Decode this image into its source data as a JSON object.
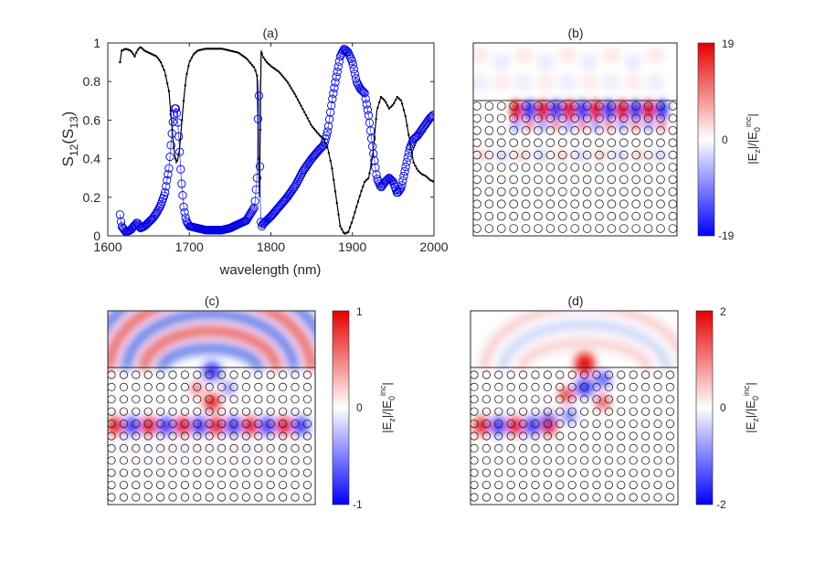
{
  "chart_data": [
    {
      "type": "line",
      "panel_label": "(a)",
      "title": "(a)",
      "xlabel": "wavelength (nm)",
      "ylabel": {
        "main": "S",
        "sub1": "12",
        "paren_open": "(S",
        "sub2": "13",
        "paren_close": ")"
      },
      "xlim": [
        1600,
        2000
      ],
      "ylim": [
        0,
        1
      ],
      "xticks": [
        "1600",
        "1700",
        "1800",
        "1900",
        "2000"
      ],
      "yticks": [
        "0",
        "0.2",
        "0.4",
        "0.6",
        "0.8",
        "1"
      ],
      "series": [
        {
          "name": "S12",
          "style": "black dots",
          "color": "#000000",
          "points": [
            [
              1615,
              0.9
            ],
            [
              1617,
              0.96
            ],
            [
              1622,
              0.97
            ],
            [
              1628,
              0.96
            ],
            [
              1630,
              0.95
            ],
            [
              1633,
              0.93
            ],
            [
              1636,
              0.96
            ],
            [
              1640,
              0.98
            ],
            [
              1645,
              0.96
            ],
            [
              1650,
              0.95
            ],
            [
              1655,
              0.94
            ],
            [
              1660,
              0.93
            ],
            [
              1665,
              0.9
            ],
            [
              1670,
              0.85
            ],
            [
              1675,
              0.75
            ],
            [
              1678,
              0.6
            ],
            [
              1680,
              0.5
            ],
            [
              1682,
              0.42
            ],
            [
              1684,
              0.38
            ],
            [
              1686,
              0.4
            ],
            [
              1688,
              0.45
            ],
            [
              1690,
              0.55
            ],
            [
              1693,
              0.7
            ],
            [
              1696,
              0.82
            ],
            [
              1700,
              0.9
            ],
            [
              1705,
              0.94
            ],
            [
              1710,
              0.96
            ],
            [
              1720,
              0.97
            ],
            [
              1730,
              0.97
            ],
            [
              1740,
              0.97
            ],
            [
              1750,
              0.96
            ],
            [
              1760,
              0.95
            ],
            [
              1770,
              0.92
            ],
            [
              1780,
              0.87
            ],
            [
              1783,
              0.83
            ],
            [
              1785,
              0.4
            ],
            [
              1786,
              0.2
            ],
            [
              1787,
              0.55
            ],
            [
              1788,
              0.96
            ],
            [
              1790,
              0.93
            ],
            [
              1795,
              0.9
            ],
            [
              1800,
              0.88
            ],
            [
              1810,
              0.85
            ],
            [
              1820,
              0.8
            ],
            [
              1830,
              0.73
            ],
            [
              1840,
              0.65
            ],
            [
              1850,
              0.57
            ],
            [
              1860,
              0.52
            ],
            [
              1865,
              0.5
            ],
            [
              1870,
              0.45
            ],
            [
              1875,
              0.35
            ],
            [
              1880,
              0.2
            ],
            [
              1885,
              0.05
            ],
            [
              1890,
              0.01
            ],
            [
              1895,
              0.02
            ],
            [
              1900,
              0.08
            ],
            [
              1905,
              0.15
            ],
            [
              1910,
              0.22
            ],
            [
              1915,
              0.28
            ],
            [
              1920,
              0.3
            ],
            [
              1925,
              0.42
            ],
            [
              1930,
              0.65
            ],
            [
              1935,
              0.72
            ],
            [
              1940,
              0.7
            ],
            [
              1945,
              0.66
            ],
            [
              1950,
              0.68
            ],
            [
              1955,
              0.72
            ],
            [
              1960,
              0.7
            ],
            [
              1965,
              0.62
            ],
            [
              1970,
              0.5
            ],
            [
              1975,
              0.38
            ],
            [
              1980,
              0.34
            ],
            [
              1985,
              0.32
            ],
            [
              1990,
              0.31
            ],
            [
              1995,
              0.29
            ],
            [
              2000,
              0.28
            ]
          ]
        },
        {
          "name": "S13",
          "style": "blue open circles",
          "color": "#0000e0",
          "points": [
            [
              1615,
              0.11
            ],
            [
              1617,
              0.05
            ],
            [
              1622,
              0.02
            ],
            [
              1628,
              0.03
            ],
            [
              1632,
              0.05
            ],
            [
              1636,
              0.07
            ],
            [
              1640,
              0.04
            ],
            [
              1645,
              0.05
            ],
            [
              1650,
              0.07
            ],
            [
              1655,
              0.09
            ],
            [
              1660,
              0.12
            ],
            [
              1665,
              0.16
            ],
            [
              1670,
              0.22
            ],
            [
              1675,
              0.35
            ],
            [
              1678,
              0.5
            ],
            [
              1680,
              0.6
            ],
            [
              1682,
              0.66
            ],
            [
              1684,
              0.66
            ],
            [
              1686,
              0.58
            ],
            [
              1688,
              0.45
            ],
            [
              1690,
              0.3
            ],
            [
              1693,
              0.15
            ],
            [
              1696,
              0.08
            ],
            [
              1700,
              0.05
            ],
            [
              1710,
              0.04
            ],
            [
              1720,
              0.03
            ],
            [
              1730,
              0.03
            ],
            [
              1740,
              0.03
            ],
            [
              1750,
              0.04
            ],
            [
              1760,
              0.06
            ],
            [
              1770,
              0.08
            ],
            [
              1780,
              0.15
            ],
            [
              1783,
              0.3
            ],
            [
              1785,
              0.81
            ],
            [
              1786,
              0.6
            ],
            [
              1787,
              0.2
            ],
            [
              1788,
              0.04
            ],
            [
              1790,
              0.06
            ],
            [
              1795,
              0.08
            ],
            [
              1800,
              0.1
            ],
            [
              1810,
              0.15
            ],
            [
              1820,
              0.2
            ],
            [
              1830,
              0.26
            ],
            [
              1840,
              0.34
            ],
            [
              1850,
              0.4
            ],
            [
              1860,
              0.45
            ],
            [
              1865,
              0.47
            ],
            [
              1870,
              0.55
            ],
            [
              1875,
              0.7
            ],
            [
              1880,
              0.82
            ],
            [
              1885,
              0.93
            ],
            [
              1890,
              0.97
            ],
            [
              1895,
              0.95
            ],
            [
              1900,
              0.9
            ],
            [
              1905,
              0.8
            ],
            [
              1910,
              0.76
            ],
            [
              1915,
              0.74
            ],
            [
              1920,
              0.62
            ],
            [
              1925,
              0.45
            ],
            [
              1930,
              0.3
            ],
            [
              1935,
              0.25
            ],
            [
              1940,
              0.28
            ],
            [
              1945,
              0.3
            ],
            [
              1950,
              0.28
            ],
            [
              1955,
              0.22
            ],
            [
              1960,
              0.25
            ],
            [
              1965,
              0.35
            ],
            [
              1970,
              0.45
            ],
            [
              1975,
              0.5
            ],
            [
              1980,
              0.52
            ],
            [
              1985,
              0.55
            ],
            [
              1990,
              0.58
            ],
            [
              1995,
              0.61
            ],
            [
              2000,
              0.63
            ]
          ]
        }
      ]
    },
    {
      "type": "heatmap",
      "panel_label": "(b)",
      "title": "(b)",
      "colorbar_label": {
        "pre": "|E",
        "sub1": "z",
        "mid": "|/|E",
        "sub2": "0",
        "sup": "inc",
        "post": "|"
      },
      "colorbar_ticks": [
        "19",
        "0",
        "-19"
      ],
      "clim": [
        -19,
        19
      ]
    },
    {
      "type": "heatmap",
      "panel_label": "(c)",
      "title": "(c)",
      "colorbar_label": {
        "pre": "|E",
        "sub1": "z",
        "mid": "|/|E",
        "sub2": "0",
        "sup": "inc",
        "post": "|"
      },
      "colorbar_ticks": [
        "1",
        "0",
        "-1"
      ],
      "clim": [
        -1,
        1
      ]
    },
    {
      "type": "heatmap",
      "panel_label": "(d)",
      "title": "(d)",
      "colorbar_label": {
        "pre": "|E",
        "sub1": "z",
        "mid": "|/|E",
        "sub2": "0",
        "sup": "inc",
        "post": "|"
      },
      "colorbar_ticks": [
        "2",
        "0",
        "-2"
      ],
      "clim": [
        -2,
        2
      ]
    }
  ]
}
